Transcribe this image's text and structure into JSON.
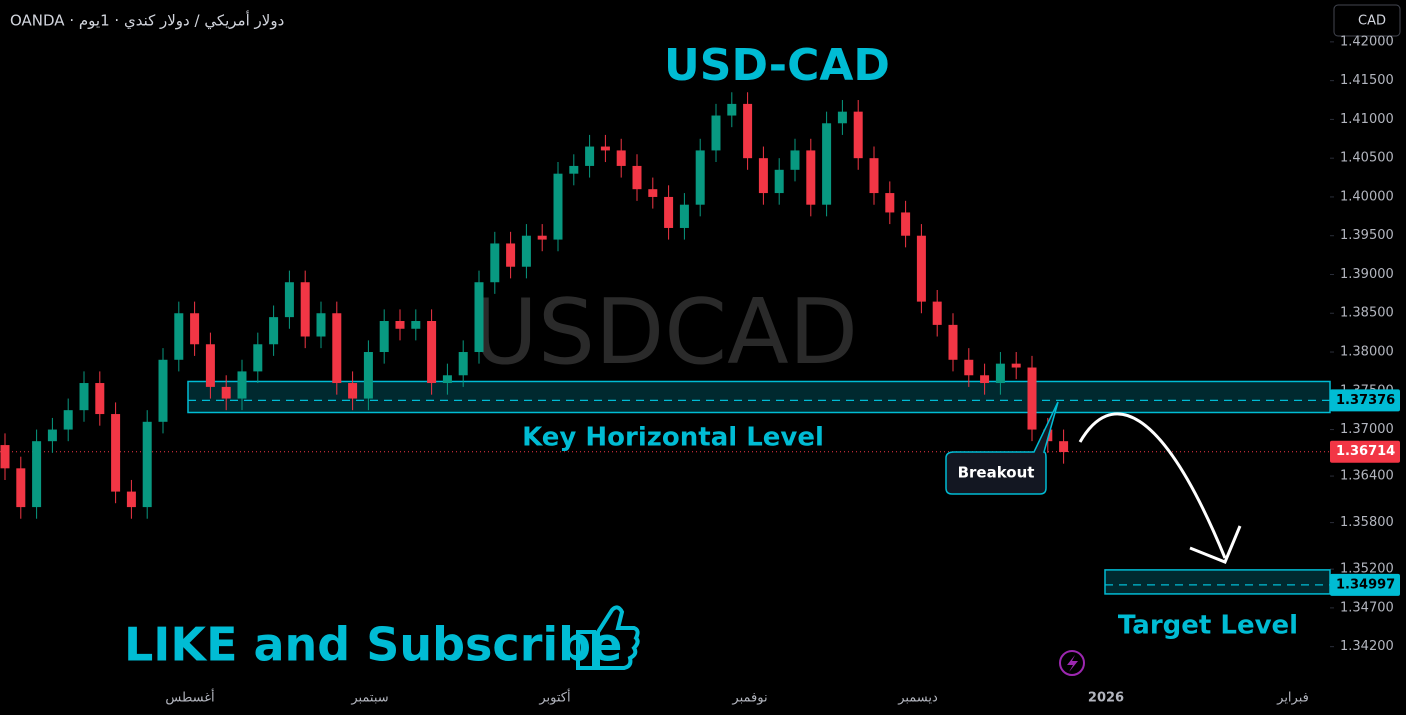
{
  "header": "OANDA · دولار أمريكي / دولار كندي · 1يوم",
  "currency": "CAD",
  "chart_data": {
    "type": "candlestick",
    "title": "USD-CAD",
    "watermark": "USDCAD",
    "up_color": "#089981",
    "down_color": "#f23645",
    "ylim": [
      1.3377,
      1.4254
    ],
    "yticks": [
      {
        "value": 1.42,
        "label": "1.42000"
      },
      {
        "value": 1.415,
        "label": "1.41500"
      },
      {
        "value": 1.41,
        "label": "1.41000"
      },
      {
        "value": 1.405,
        "label": "1.40500"
      },
      {
        "value": 1.4,
        "label": "1.40000"
      },
      {
        "value": 1.395,
        "label": "1.39500"
      },
      {
        "value": 1.39,
        "label": "1.39000"
      },
      {
        "value": 1.385,
        "label": "1.38500"
      },
      {
        "value": 1.38,
        "label": "1.38000"
      },
      {
        "value": 1.375,
        "label": "1.37500"
      },
      {
        "value": 1.37,
        "label": "1.37000"
      },
      {
        "value": 1.364,
        "label": "1.36400"
      },
      {
        "value": 1.358,
        "label": "1.35800"
      },
      {
        "value": 1.352,
        "label": "1.35200"
      },
      {
        "value": 1.347,
        "label": "1.34700"
      },
      {
        "value": 1.342,
        "label": "1.34200"
      }
    ],
    "x_labels": [
      "أغسطس",
      "سبتمبر",
      "أكتوبر",
      "نوفمبر",
      "ديسمبر",
      "2026",
      "فبراير"
    ],
    "open": [
      1.368,
      1.365,
      1.36,
      1.3685,
      1.37,
      1.3725,
      1.376,
      1.372,
      1.362,
      1.36,
      1.371,
      1.379,
      1.385,
      1.381,
      1.3755,
      1.374,
      1.3775,
      1.381,
      1.3845,
      1.389,
      1.382,
      1.385,
      1.376,
      1.374,
      1.38,
      1.384,
      1.383,
      1.384,
      1.376,
      1.377,
      1.38,
      1.389,
      1.394,
      1.391,
      1.395,
      1.3945,
      1.403,
      1.404,
      1.4065,
      1.406,
      1.404,
      1.401,
      1.4,
      1.396,
      1.399,
      1.406,
      1.4105,
      1.412,
      1.405,
      1.4005,
      1.4035,
      1.406,
      1.399,
      1.4095,
      1.411,
      1.405,
      1.4005,
      1.398,
      1.395,
      1.3865,
      1.3835,
      1.379,
      1.377,
      1.376,
      1.3785,
      1.378,
      1.37,
      1.3685
    ],
    "high": [
      1.3695,
      1.3665,
      1.37,
      1.3715,
      1.374,
      1.3775,
      1.3775,
      1.3735,
      1.3635,
      1.3725,
      1.3805,
      1.3865,
      1.3865,
      1.3825,
      1.377,
      1.379,
      1.3825,
      1.386,
      1.3905,
      1.3905,
      1.3865,
      1.3865,
      1.3775,
      1.3815,
      1.3855,
      1.3855,
      1.3855,
      1.3855,
      1.3785,
      1.3815,
      1.3905,
      1.3955,
      1.3955,
      1.3965,
      1.3965,
      1.4045,
      1.4055,
      1.408,
      1.408,
      1.4075,
      1.4055,
      1.4025,
      1.4015,
      1.4005,
      1.4075,
      1.412,
      1.4135,
      1.4135,
      1.4065,
      1.405,
      1.4075,
      1.4075,
      1.411,
      1.4125,
      1.4125,
      1.4065,
      1.402,
      1.3995,
      1.3965,
      1.388,
      1.385,
      1.3805,
      1.3785,
      1.38,
      1.38,
      1.3795,
      1.3715,
      1.37
    ],
    "low": [
      1.3635,
      1.3585,
      1.3585,
      1.367,
      1.3685,
      1.371,
      1.3705,
      1.3605,
      1.3585,
      1.3585,
      1.3695,
      1.3775,
      1.3795,
      1.374,
      1.3725,
      1.3725,
      1.376,
      1.3795,
      1.383,
      1.3805,
      1.3805,
      1.3745,
      1.3725,
      1.3725,
      1.3785,
      1.3815,
      1.3815,
      1.3745,
      1.3745,
      1.3755,
      1.3785,
      1.3875,
      1.3895,
      1.3895,
      1.393,
      1.393,
      1.4015,
      1.4025,
      1.4045,
      1.4025,
      1.3995,
      1.3985,
      1.3945,
      1.3945,
      1.3975,
      1.4045,
      1.409,
      1.4035,
      1.399,
      1.399,
      1.402,
      1.3975,
      1.3975,
      1.408,
      1.4035,
      1.399,
      1.3965,
      1.3935,
      1.385,
      1.382,
      1.3775,
      1.3755,
      1.3745,
      1.3745,
      1.3765,
      1.3685,
      1.367,
      1.3656
    ],
    "close": [
      1.365,
      1.36,
      1.3685,
      1.37,
      1.3725,
      1.376,
      1.372,
      1.362,
      1.36,
      1.371,
      1.379,
      1.385,
      1.381,
      1.3755,
      1.374,
      1.3775,
      1.381,
      1.3845,
      1.389,
      1.382,
      1.385,
      1.376,
      1.374,
      1.38,
      1.384,
      1.383,
      1.384,
      1.376,
      1.377,
      1.38,
      1.389,
      1.394,
      1.391,
      1.395,
      1.3945,
      1.403,
      1.404,
      1.4065,
      1.406,
      1.404,
      1.401,
      1.4,
      1.396,
      1.399,
      1.406,
      1.4105,
      1.412,
      1.405,
      1.4005,
      1.4035,
      1.406,
      1.399,
      1.4095,
      1.411,
      1.405,
      1.4005,
      1.398,
      1.395,
      1.3865,
      1.3835,
      1.379,
      1.377,
      1.376,
      1.3785,
      1.378,
      1.37,
      1.3685,
      1.3671
    ],
    "key_level": {
      "label": "Key Horizontal Level",
      "zone": [
        1.3722,
        1.3762
      ],
      "price": 1.37376,
      "price_label": "1.37376",
      "color": "#00bcd4"
    },
    "target_level": {
      "label": "Target Level",
      "zone": [
        1.3488,
        1.3519
      ],
      "price": 1.34997,
      "price_label": "1.34997",
      "color": "#00bcd4"
    },
    "last_price": {
      "value": 1.36714,
      "label": "1.36714",
      "color": "#f23645"
    },
    "breakout_label": "Breakout",
    "promo": "LIKE and Subscribe"
  }
}
